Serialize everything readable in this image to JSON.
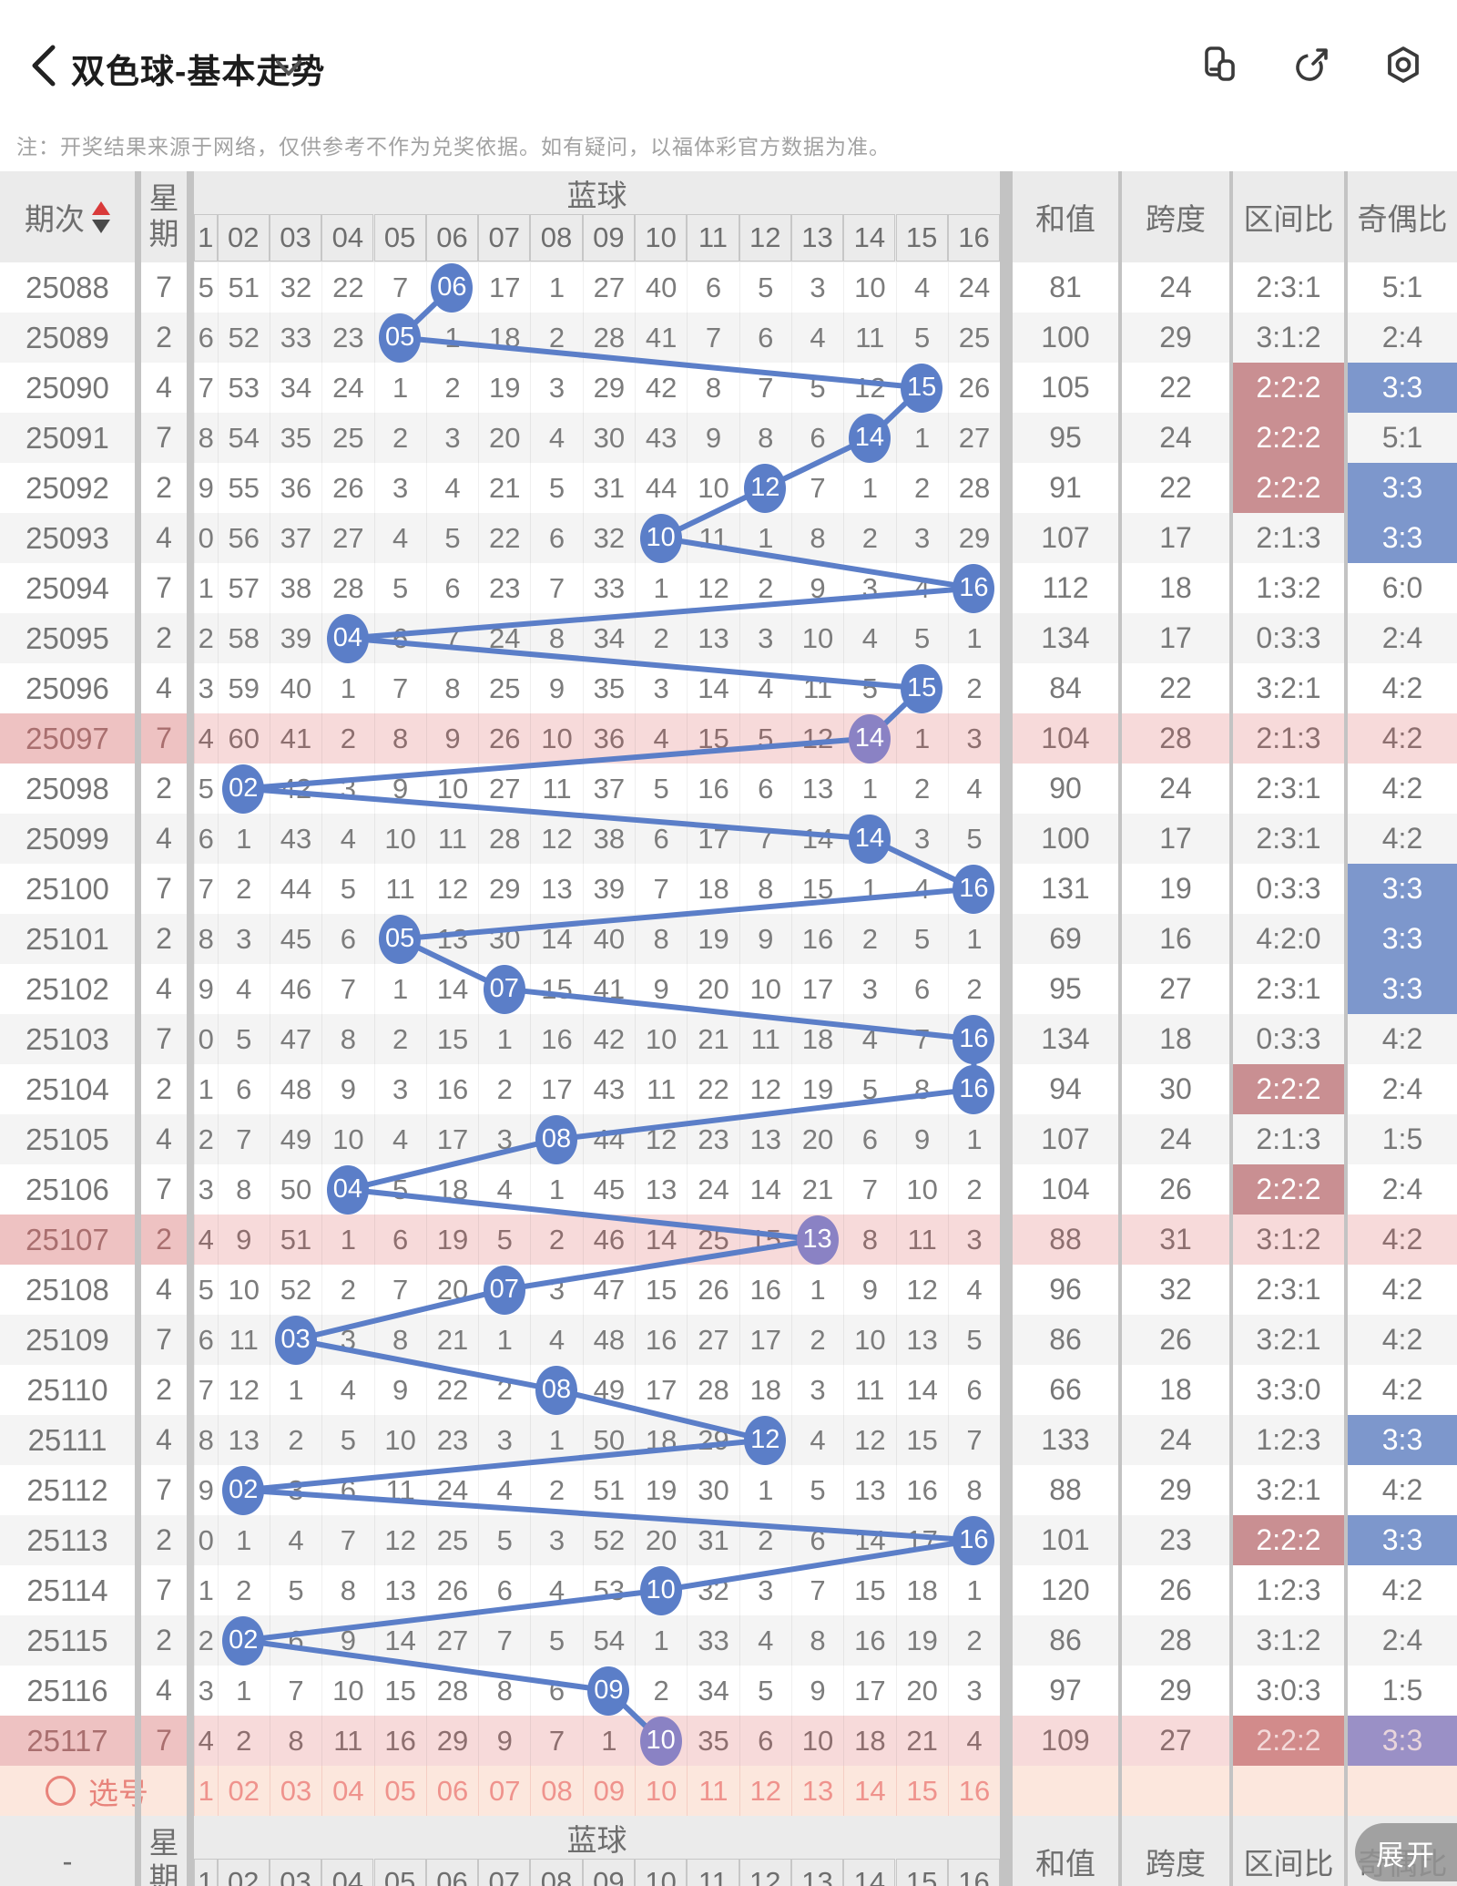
{
  "titlebar": {
    "title": "双色球-基本走势",
    "expand_label": "展开"
  },
  "note": "注：开奖结果来源于网络，仅供参考不作为兑奖依据。如有疑问，以福体彩官方数据为准。",
  "table": {
    "headers": {
      "issue": "期次",
      "week": "星期",
      "blue": "蓝球",
      "sum": "和值",
      "span": "跨度",
      "interval": "区间比",
      "odd_even": "奇偶比"
    },
    "ball_columns": [
      "1",
      "02",
      "03",
      "04",
      "05",
      "06",
      "07",
      "08",
      "09",
      "10",
      "11",
      "12",
      "13",
      "14",
      "15",
      "16"
    ],
    "footer_issue": "-",
    "select_row": {
      "label": "选号"
    },
    "rows": [
      {
        "issue": "25088",
        "week": "7",
        "cells": [
          "5",
          "51",
          "32",
          "22",
          "7",
          "06",
          "17",
          "1",
          "27",
          "40",
          "6",
          "5",
          "3",
          "10",
          "4",
          "24"
        ],
        "win": 6,
        "sum": "81",
        "span": "24",
        "interval": "2:3:1",
        "interval_hl": "none",
        "odd_even": "5:1",
        "odd_even_hl": "none",
        "pink": false
      },
      {
        "issue": "25089",
        "week": "2",
        "cells": [
          "6",
          "52",
          "33",
          "23",
          "05",
          "1",
          "18",
          "2",
          "28",
          "41",
          "7",
          "6",
          "4",
          "11",
          "5",
          "25"
        ],
        "win": 5,
        "sum": "100",
        "span": "29",
        "interval": "3:1:2",
        "interval_hl": "none",
        "odd_even": "2:4",
        "odd_even_hl": "none",
        "pink": false
      },
      {
        "issue": "25090",
        "week": "4",
        "cells": [
          "7",
          "53",
          "34",
          "24",
          "1",
          "2",
          "19",
          "3",
          "29",
          "42",
          "8",
          "7",
          "5",
          "12",
          "15",
          "26"
        ],
        "win": 15,
        "sum": "105",
        "span": "22",
        "interval": "2:2:2",
        "interval_hl": "red",
        "odd_even": "3:3",
        "odd_even_hl": "blue",
        "pink": false
      },
      {
        "issue": "25091",
        "week": "7",
        "cells": [
          "8",
          "54",
          "35",
          "25",
          "2",
          "3",
          "20",
          "4",
          "30",
          "43",
          "9",
          "8",
          "6",
          "14",
          "1",
          "27"
        ],
        "win": 14,
        "sum": "95",
        "span": "24",
        "interval": "2:2:2",
        "interval_hl": "red",
        "odd_even": "5:1",
        "odd_even_hl": "none",
        "pink": false
      },
      {
        "issue": "25092",
        "week": "2",
        "cells": [
          "9",
          "55",
          "36",
          "26",
          "3",
          "4",
          "21",
          "5",
          "31",
          "44",
          "10",
          "12",
          "7",
          "1",
          "2",
          "28"
        ],
        "win": 12,
        "sum": "91",
        "span": "22",
        "interval": "2:2:2",
        "interval_hl": "red",
        "odd_even": "3:3",
        "odd_even_hl": "blue",
        "pink": false
      },
      {
        "issue": "25093",
        "week": "4",
        "cells": [
          "0",
          "56",
          "37",
          "27",
          "4",
          "5",
          "22",
          "6",
          "32",
          "10",
          "11",
          "1",
          "8",
          "2",
          "3",
          "29"
        ],
        "win": 10,
        "sum": "107",
        "span": "17",
        "interval": "2:1:3",
        "interval_hl": "none",
        "odd_even": "3:3",
        "odd_even_hl": "blue",
        "pink": false
      },
      {
        "issue": "25094",
        "week": "7",
        "cells": [
          "1",
          "57",
          "38",
          "28",
          "5",
          "6",
          "23",
          "7",
          "33",
          "1",
          "12",
          "2",
          "9",
          "3",
          "4",
          "16"
        ],
        "win": 16,
        "sum": "112",
        "span": "18",
        "interval": "1:3:2",
        "interval_hl": "none",
        "odd_even": "6:0",
        "odd_even_hl": "none",
        "pink": false
      },
      {
        "issue": "25095",
        "week": "2",
        "cells": [
          "2",
          "58",
          "39",
          "04",
          "6",
          "7",
          "24",
          "8",
          "34",
          "2",
          "13",
          "3",
          "10",
          "4",
          "5",
          "1"
        ],
        "win": 4,
        "sum": "134",
        "span": "17",
        "interval": "0:3:3",
        "interval_hl": "none",
        "odd_even": "2:4",
        "odd_even_hl": "none",
        "pink": false
      },
      {
        "issue": "25096",
        "week": "4",
        "cells": [
          "3",
          "59",
          "40",
          "1",
          "7",
          "8",
          "25",
          "9",
          "35",
          "3",
          "14",
          "4",
          "11",
          "5",
          "15",
          "2"
        ],
        "win": 15,
        "sum": "84",
        "span": "22",
        "interval": "3:2:1",
        "interval_hl": "none",
        "odd_even": "4:2",
        "odd_even_hl": "none",
        "pink": false
      },
      {
        "issue": "25097",
        "week": "7",
        "cells": [
          "4",
          "60",
          "41",
          "2",
          "8",
          "9",
          "26",
          "10",
          "36",
          "4",
          "15",
          "5",
          "12",
          "14",
          "1",
          "3"
        ],
        "win": 14,
        "sum": "104",
        "span": "28",
        "interval": "2:1:3",
        "interval_hl": "none",
        "odd_even": "4:2",
        "odd_even_hl": "none",
        "pink": true
      },
      {
        "issue": "25098",
        "week": "2",
        "cells": [
          "5",
          "02",
          "42",
          "3",
          "9",
          "10",
          "27",
          "11",
          "37",
          "5",
          "16",
          "6",
          "13",
          "1",
          "2",
          "4"
        ],
        "win": 2,
        "sum": "90",
        "span": "24",
        "interval": "2:3:1",
        "interval_hl": "none",
        "odd_even": "4:2",
        "odd_even_hl": "none",
        "pink": false
      },
      {
        "issue": "25099",
        "week": "4",
        "cells": [
          "6",
          "1",
          "43",
          "4",
          "10",
          "11",
          "28",
          "12",
          "38",
          "6",
          "17",
          "7",
          "14",
          "14",
          "3",
          "5"
        ],
        "win": 14,
        "sum": "100",
        "span": "17",
        "interval": "2:3:1",
        "interval_hl": "none",
        "odd_even": "4:2",
        "odd_even_hl": "none",
        "pink": false
      },
      {
        "issue": "25100",
        "week": "7",
        "cells": [
          "7",
          "2",
          "44",
          "5",
          "11",
          "12",
          "29",
          "13",
          "39",
          "7",
          "18",
          "8",
          "15",
          "1",
          "4",
          "16"
        ],
        "win": 16,
        "sum": "131",
        "span": "19",
        "interval": "0:3:3",
        "interval_hl": "none",
        "odd_even": "3:3",
        "odd_even_hl": "blue",
        "pink": false
      },
      {
        "issue": "25101",
        "week": "2",
        "cells": [
          "8",
          "3",
          "45",
          "6",
          "05",
          "13",
          "30",
          "14",
          "40",
          "8",
          "19",
          "9",
          "16",
          "2",
          "5",
          "1"
        ],
        "win": 5,
        "sum": "69",
        "span": "16",
        "interval": "4:2:0",
        "interval_hl": "none",
        "odd_even": "3:3",
        "odd_even_hl": "blue",
        "pink": false
      },
      {
        "issue": "25102",
        "week": "4",
        "cells": [
          "9",
          "4",
          "46",
          "7",
          "1",
          "14",
          "07",
          "15",
          "41",
          "9",
          "20",
          "10",
          "17",
          "3",
          "6",
          "2"
        ],
        "win": 7,
        "sum": "95",
        "span": "27",
        "interval": "2:3:1",
        "interval_hl": "none",
        "odd_even": "3:3",
        "odd_even_hl": "blue",
        "pink": false
      },
      {
        "issue": "25103",
        "week": "7",
        "cells": [
          "0",
          "5",
          "47",
          "8",
          "2",
          "15",
          "1",
          "16",
          "42",
          "10",
          "21",
          "11",
          "18",
          "4",
          "7",
          "16"
        ],
        "win": 16,
        "sum": "134",
        "span": "18",
        "interval": "0:3:3",
        "interval_hl": "none",
        "odd_even": "4:2",
        "odd_even_hl": "none",
        "pink": false
      },
      {
        "issue": "25104",
        "week": "2",
        "cells": [
          "1",
          "6",
          "48",
          "9",
          "3",
          "16",
          "2",
          "17",
          "43",
          "11",
          "22",
          "12",
          "19",
          "5",
          "8",
          "16"
        ],
        "win": 16,
        "sum": "94",
        "span": "30",
        "interval": "2:2:2",
        "interval_hl": "red",
        "odd_even": "2:4",
        "odd_even_hl": "none",
        "pink": false
      },
      {
        "issue": "25105",
        "week": "4",
        "cells": [
          "2",
          "7",
          "49",
          "10",
          "4",
          "17",
          "3",
          "08",
          "44",
          "12",
          "23",
          "13",
          "20",
          "6",
          "9",
          "1"
        ],
        "win": 8,
        "sum": "107",
        "span": "24",
        "interval": "2:1:3",
        "interval_hl": "none",
        "odd_even": "1:5",
        "odd_even_hl": "none",
        "pink": false
      },
      {
        "issue": "25106",
        "week": "7",
        "cells": [
          "3",
          "8",
          "50",
          "04",
          "5",
          "18",
          "4",
          "1",
          "45",
          "13",
          "24",
          "14",
          "21",
          "7",
          "10",
          "2"
        ],
        "win": 4,
        "sum": "104",
        "span": "26",
        "interval": "2:2:2",
        "interval_hl": "red",
        "odd_even": "2:4",
        "odd_even_hl": "none",
        "pink": false
      },
      {
        "issue": "25107",
        "week": "2",
        "cells": [
          "4",
          "9",
          "51",
          "1",
          "6",
          "19",
          "5",
          "2",
          "46",
          "14",
          "25",
          "15",
          "13",
          "8",
          "11",
          "3"
        ],
        "win": 13,
        "sum": "88",
        "span": "31",
        "interval": "3:1:2",
        "interval_hl": "none",
        "odd_even": "4:2",
        "odd_even_hl": "none",
        "pink": true
      },
      {
        "issue": "25108",
        "week": "4",
        "cells": [
          "5",
          "10",
          "52",
          "2",
          "7",
          "20",
          "07",
          "3",
          "47",
          "15",
          "26",
          "16",
          "1",
          "9",
          "12",
          "4"
        ],
        "win": 7,
        "sum": "96",
        "span": "32",
        "interval": "2:3:1",
        "interval_hl": "none",
        "odd_even": "4:2",
        "odd_even_hl": "none",
        "pink": false
      },
      {
        "issue": "25109",
        "week": "7",
        "cells": [
          "6",
          "11",
          "03",
          "3",
          "8",
          "21",
          "1",
          "4",
          "48",
          "16",
          "27",
          "17",
          "2",
          "10",
          "13",
          "5"
        ],
        "win": 3,
        "sum": "86",
        "span": "26",
        "interval": "3:2:1",
        "interval_hl": "none",
        "odd_even": "4:2",
        "odd_even_hl": "none",
        "pink": false
      },
      {
        "issue": "25110",
        "week": "2",
        "cells": [
          "7",
          "12",
          "1",
          "4",
          "9",
          "22",
          "2",
          "08",
          "49",
          "17",
          "28",
          "18",
          "3",
          "11",
          "14",
          "6"
        ],
        "win": 8,
        "sum": "66",
        "span": "18",
        "interval": "3:3:0",
        "interval_hl": "none",
        "odd_even": "4:2",
        "odd_even_hl": "none",
        "pink": false
      },
      {
        "issue": "25111",
        "week": "4",
        "cells": [
          "8",
          "13",
          "2",
          "5",
          "10",
          "23",
          "3",
          "1",
          "50",
          "18",
          "29",
          "12",
          "4",
          "12",
          "15",
          "7"
        ],
        "win": 12,
        "sum": "133",
        "span": "24",
        "interval": "1:2:3",
        "interval_hl": "none",
        "odd_even": "3:3",
        "odd_even_hl": "blue",
        "pink": false
      },
      {
        "issue": "25112",
        "week": "7",
        "cells": [
          "9",
          "02",
          "3",
          "6",
          "11",
          "24",
          "4",
          "2",
          "51",
          "19",
          "30",
          "1",
          "5",
          "13",
          "16",
          "8"
        ],
        "win": 2,
        "sum": "88",
        "span": "29",
        "interval": "3:2:1",
        "interval_hl": "none",
        "odd_even": "4:2",
        "odd_even_hl": "none",
        "pink": false
      },
      {
        "issue": "25113",
        "week": "2",
        "cells": [
          "0",
          "1",
          "4",
          "7",
          "12",
          "25",
          "5",
          "3",
          "52",
          "20",
          "31",
          "2",
          "6",
          "14",
          "17",
          "16"
        ],
        "win": 16,
        "sum": "101",
        "span": "23",
        "interval": "2:2:2",
        "interval_hl": "red",
        "odd_even": "3:3",
        "odd_even_hl": "blue",
        "pink": false
      },
      {
        "issue": "25114",
        "week": "7",
        "cells": [
          "1",
          "2",
          "5",
          "8",
          "13",
          "26",
          "6",
          "4",
          "53",
          "10",
          "32",
          "3",
          "7",
          "15",
          "18",
          "1"
        ],
        "win": 10,
        "sum": "120",
        "span": "26",
        "interval": "1:2:3",
        "interval_hl": "none",
        "odd_even": "4:2",
        "odd_even_hl": "none",
        "pink": false
      },
      {
        "issue": "25115",
        "week": "2",
        "cells": [
          "2",
          "02",
          "6",
          "9",
          "14",
          "27",
          "7",
          "5",
          "54",
          "1",
          "33",
          "4",
          "8",
          "16",
          "19",
          "2"
        ],
        "win": 2,
        "sum": "86",
        "span": "28",
        "interval": "3:1:2",
        "interval_hl": "none",
        "odd_even": "2:4",
        "odd_even_hl": "none",
        "pink": false
      },
      {
        "issue": "25116",
        "week": "4",
        "cells": [
          "3",
          "1",
          "7",
          "10",
          "15",
          "28",
          "8",
          "6",
          "09",
          "2",
          "34",
          "5",
          "9",
          "17",
          "20",
          "3"
        ],
        "win": 9,
        "sum": "97",
        "span": "29",
        "interval": "3:0:3",
        "interval_hl": "none",
        "odd_even": "1:5",
        "odd_even_hl": "none",
        "pink": false
      },
      {
        "issue": "25117",
        "week": "7",
        "cells": [
          "4",
          "2",
          "8",
          "11",
          "16",
          "29",
          "9",
          "7",
          "1",
          "10",
          "35",
          "6",
          "10",
          "18",
          "21",
          "4"
        ],
        "win": 10,
        "sum": "109",
        "span": "27",
        "interval": "2:2:2",
        "interval_hl": "deepred",
        "odd_even": "3:3",
        "odd_even_hl": "purple",
        "pink": true
      }
    ]
  },
  "colors": {
    "ball_blue": "#5b7ec8",
    "line_blue": "#5b7ec8",
    "ball_purple_on_pink": "#8a82c4",
    "cell_red": "#c98f92",
    "cell_red_deep": "#d28b8b",
    "cell_blue": "#7d97cc",
    "cell_purple": "#9a90c6",
    "row_pink": "#f7dada",
    "row_pink_dark": "#eec2c2",
    "row_stripe": "#f4f4f4",
    "select_row_bg": "#fce7dd",
    "select_accent": "#e8837b",
    "header_bg": "#ebebeb",
    "divider": "#c3c3c3"
  }
}
